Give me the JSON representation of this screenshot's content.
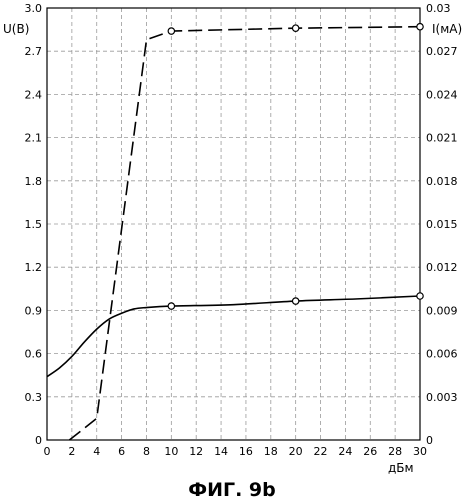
{
  "chart_data": {
    "type": "line",
    "title": "",
    "caption": "ФИГ. 9b",
    "xlabel": "дБм",
    "ylabel_left": "U(B)",
    "ylabel_right": "I(мА)",
    "xlim": [
      0,
      30
    ],
    "ylim_left": [
      0,
      3.0
    ],
    "ylim_right": [
      0,
      0.03
    ],
    "grid": true,
    "x_ticks": [
      "0",
      "2",
      "4",
      "6",
      "8",
      "10",
      "12",
      "14",
      "16",
      "18",
      "20",
      "22",
      "24",
      "26",
      "28",
      "30"
    ],
    "y_left_ticks": [
      "0",
      "0.3",
      "0.6",
      "0.9",
      "1.2",
      "1.5",
      "1.8",
      "2.1",
      "2.4",
      "2.7",
      "3.0"
    ],
    "y_right_ticks": [
      "0",
      "0.003",
      "0.006",
      "0.009",
      "0.012",
      "0.015",
      "0.018",
      "0.021",
      "0.024",
      "0.027",
      "0.03"
    ],
    "series": [
      {
        "axis": "left",
        "style": "solid",
        "points": [
          {
            "x": 0,
            "y": 0.44
          },
          {
            "x": 1,
            "y": 0.5
          },
          {
            "x": 2,
            "y": 0.58
          },
          {
            "x": 3,
            "y": 0.68
          },
          {
            "x": 4,
            "y": 0.77
          },
          {
            "x": 5,
            "y": 0.84
          },
          {
            "x": 6,
            "y": 0.88
          },
          {
            "x": 7,
            "y": 0.91
          },
          {
            "x": 8,
            "y": 0.92
          },
          {
            "x": 10,
            "y": 0.93
          },
          {
            "x": 15,
            "y": 0.94
          },
          {
            "x": 20,
            "y": 0.965
          },
          {
            "x": 25,
            "y": 0.98
          },
          {
            "x": 30,
            "y": 1.0
          }
        ],
        "markers_x": [
          10,
          20,
          30
        ]
      },
      {
        "axis": "right",
        "style": "dashed",
        "points": [
          {
            "x": 1.8,
            "y": 0.0
          },
          {
            "x": 4,
            "y": 0.0015
          },
          {
            "x": 8,
            "y": 0.0278
          },
          {
            "x": 10,
            "y": 0.0284
          },
          {
            "x": 20,
            "y": 0.0286
          },
          {
            "x": 30,
            "y": 0.0287
          }
        ],
        "markers_x": [
          10,
          20,
          30
        ]
      }
    ]
  }
}
